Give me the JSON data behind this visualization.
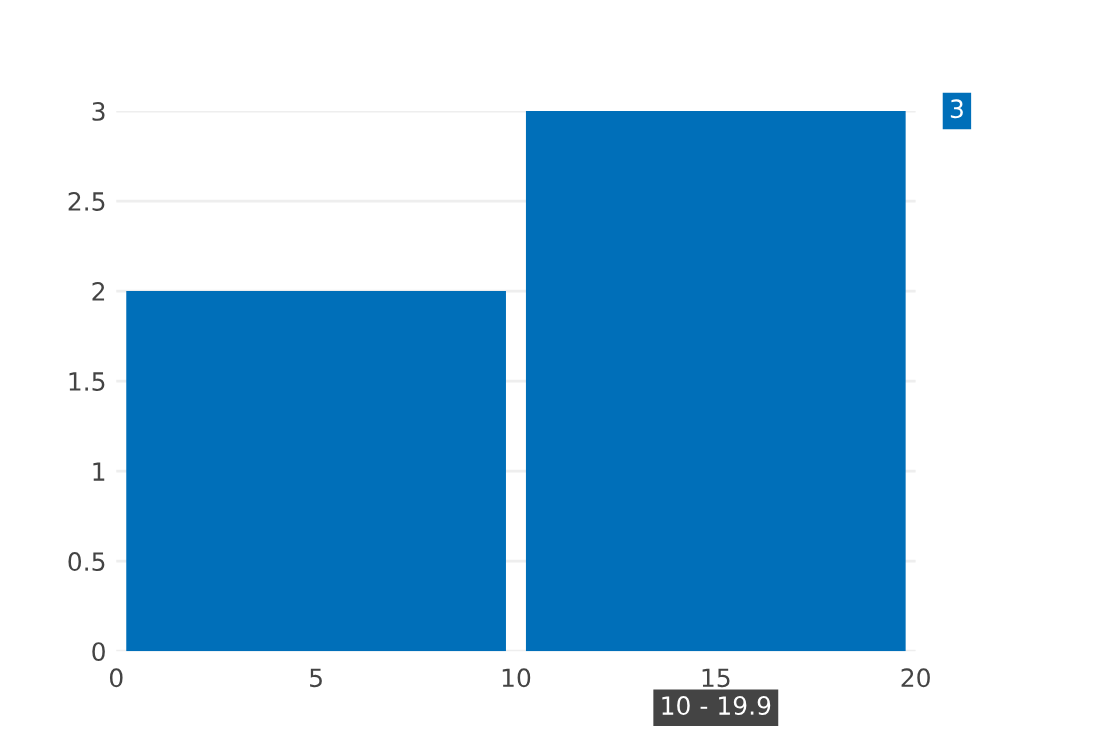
{
  "chart_data": {
    "type": "histogram",
    "bins": [
      0,
      10,
      20
    ],
    "values": [
      2,
      3
    ],
    "color": "#006fb9",
    "xlim": [
      0,
      20
    ],
    "xticks": [
      0,
      5,
      10,
      15,
      20
    ],
    "ylim": [
      0,
      3
    ],
    "yticks": [
      0,
      0.5,
      1,
      1.5,
      2,
      2.5,
      3
    ],
    "grid": "y",
    "annotations": [
      {
        "text": "3",
        "x": 20,
        "y": 3
      },
      {
        "text": "10 - 19.9",
        "x": 15,
        "y": 0
      }
    ]
  }
}
